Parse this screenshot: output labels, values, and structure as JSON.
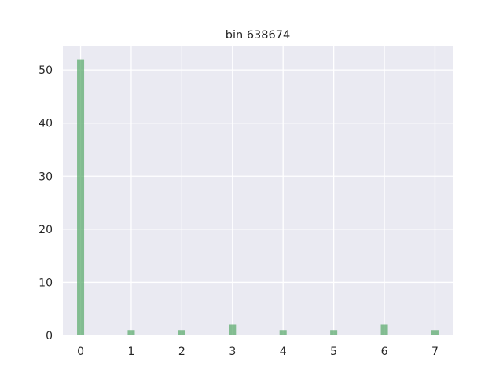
{
  "chart_data": {
    "type": "bar",
    "title": "bin 638674",
    "xlabel": "",
    "ylabel": "",
    "x": [
      0,
      1,
      2,
      3,
      4,
      5,
      6,
      7
    ],
    "values": [
      52,
      1,
      1,
      2,
      1,
      1,
      2,
      1
    ],
    "xlim": [
      -0.35,
      7.35
    ],
    "ylim": [
      0,
      54.6
    ],
    "xticks": [
      0,
      1,
      2,
      3,
      4,
      5,
      6,
      7
    ],
    "yticks": [
      0,
      10,
      20,
      30,
      40,
      50
    ],
    "bar_width": 0.14,
    "grid": true,
    "colors": {
      "bar": "#55a868",
      "plot_background": "#eaeaf2",
      "grid": "#ffffff"
    }
  }
}
